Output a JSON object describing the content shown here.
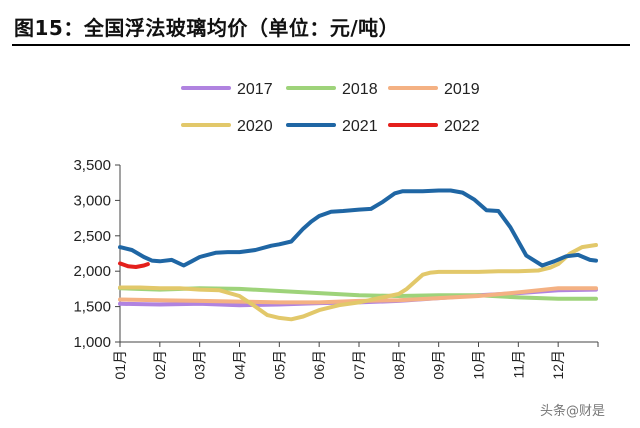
{
  "title": "图15：全国浮法玻璃均价（单位：元/吨）",
  "watermark": "头条@财是",
  "chart_data": {
    "type": "line",
    "ylim": [
      1000,
      3500
    ],
    "yticks": [
      "1,000",
      "1,500",
      "2,000",
      "2,500",
      "3,000",
      "3,500"
    ],
    "ytick_values": [
      1000,
      1500,
      2000,
      2500,
      3000,
      3500
    ],
    "categories": [
      "01月",
      "02月",
      "03月",
      "04月",
      "05月",
      "06月",
      "07月",
      "08月",
      "09月",
      "10月",
      "11月",
      "12月"
    ],
    "legend_placement": "top",
    "series": [
      {
        "name": "2017",
        "color": "#b083e0",
        "x": [
          1,
          2,
          3,
          4,
          5,
          6,
          7,
          8,
          9,
          10,
          11,
          12,
          12.95
        ],
        "y": [
          1540,
          1530,
          1540,
          1520,
          1530,
          1550,
          1560,
          1580,
          1620,
          1660,
          1690,
          1730,
          1740
        ]
      },
      {
        "name": "2018",
        "color": "#9ed37a",
        "x": [
          1,
          2,
          3,
          4,
          5,
          6,
          7,
          8,
          9,
          10,
          11,
          12,
          12.95
        ],
        "y": [
          1760,
          1740,
          1760,
          1750,
          1720,
          1690,
          1660,
          1650,
          1660,
          1660,
          1630,
          1610,
          1610
        ]
      },
      {
        "name": "2019",
        "color": "#f4b183",
        "x": [
          1,
          2,
          3,
          4,
          5,
          6,
          7,
          8,
          9,
          10,
          11,
          12,
          12.95
        ],
        "y": [
          1600,
          1590,
          1580,
          1570,
          1560,
          1560,
          1580,
          1590,
          1620,
          1650,
          1700,
          1760,
          1760
        ]
      },
      {
        "name": "2020",
        "color": "#e2c86a",
        "x": [
          1,
          1.5,
          2,
          2.5,
          3,
          3.5,
          4,
          4.4,
          4.7,
          5,
          5.3,
          5.6,
          6,
          6.5,
          7,
          7.5,
          8,
          8.2,
          8.4,
          8.6,
          8.8,
          9,
          9.5,
          10,
          10.5,
          11,
          11.5,
          11.8,
          12,
          12.3,
          12.6,
          12.95
        ],
        "y": [
          1770,
          1770,
          1760,
          1760,
          1740,
          1730,
          1650,
          1500,
          1380,
          1340,
          1320,
          1360,
          1450,
          1520,
          1560,
          1620,
          1680,
          1750,
          1850,
          1950,
          1980,
          1990,
          1990,
          1990,
          2000,
          2000,
          2010,
          2050,
          2100,
          2250,
          2340,
          2370
        ]
      },
      {
        "name": "2021",
        "color": "#1f66a4",
        "x": [
          1,
          1.3,
          1.6,
          1.8,
          2,
          2.3,
          2.6,
          2.8,
          3,
          3.4,
          3.7,
          4,
          4.4,
          4.8,
          5,
          5.3,
          5.6,
          5.8,
          6,
          6.3,
          6.6,
          7,
          7.3,
          7.6,
          7.9,
          8.1,
          8.3,
          8.6,
          9,
          9.3,
          9.6,
          9.9,
          10.2,
          10.5,
          10.8,
          11.2,
          11.6,
          11.9,
          12.2,
          12.5,
          12.8,
          12.95
        ],
        "y": [
          2340,
          2300,
          2200,
          2150,
          2140,
          2160,
          2080,
          2140,
          2200,
          2260,
          2270,
          2270,
          2300,
          2360,
          2380,
          2420,
          2600,
          2700,
          2780,
          2840,
          2850,
          2870,
          2880,
          2980,
          3100,
          3130,
          3130,
          3130,
          3140,
          3140,
          3110,
          3010,
          2860,
          2850,
          2620,
          2220,
          2080,
          2140,
          2210,
          2230,
          2160,
          2150
        ]
      },
      {
        "name": "2022",
        "color": "#e4201c",
        "x": [
          1,
          1.2,
          1.4,
          1.6,
          1.7
        ],
        "y": [
          2110,
          2070,
          2060,
          2080,
          2100
        ]
      }
    ]
  }
}
